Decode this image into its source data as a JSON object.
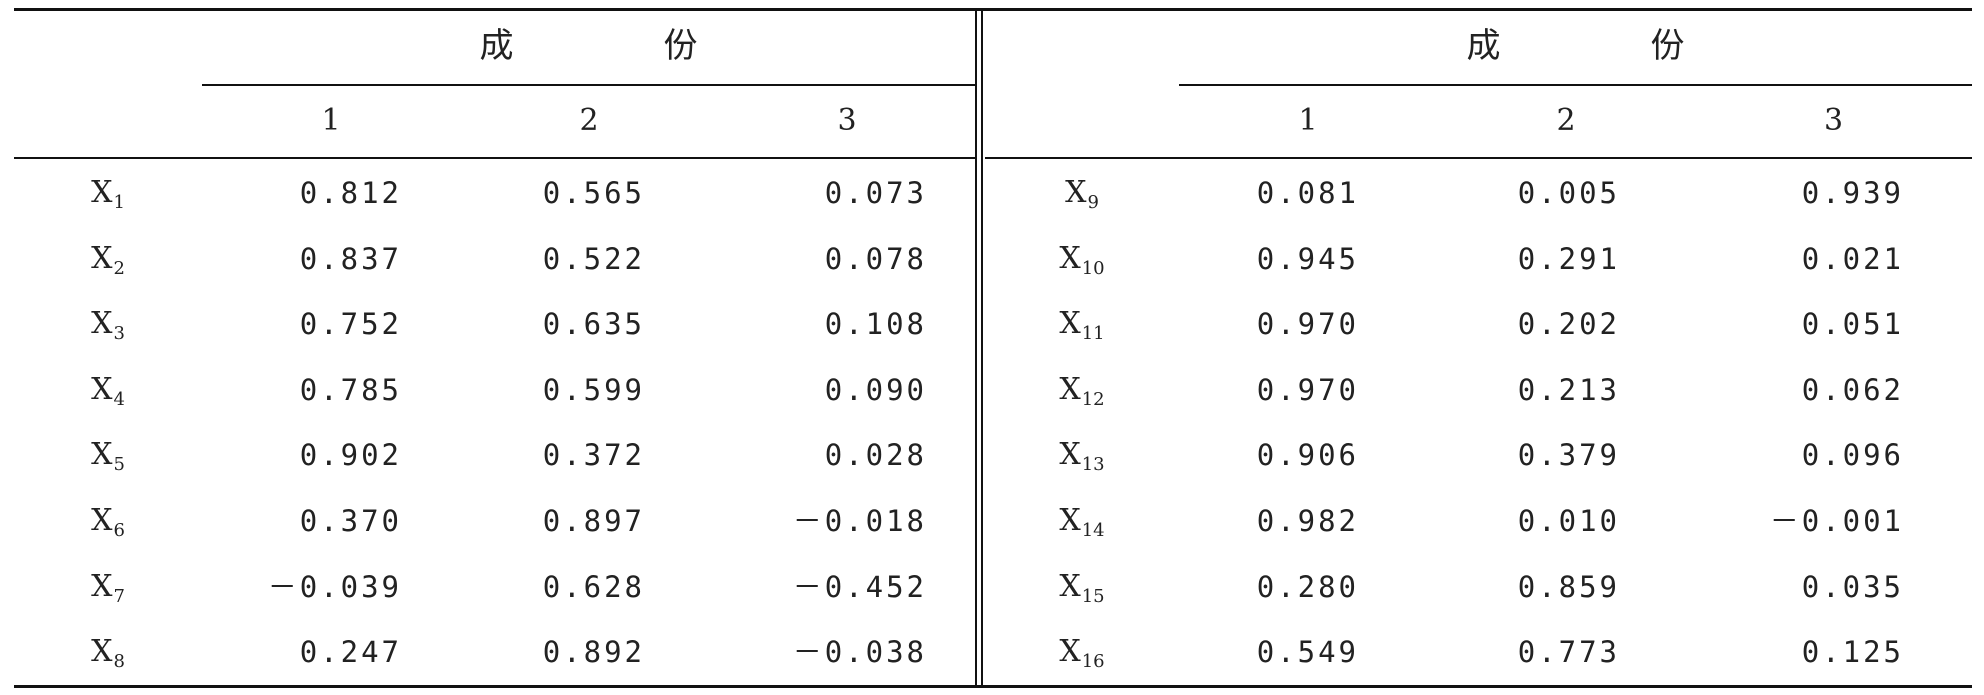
{
  "table": {
    "left": {
      "group_header": "成份",
      "columns": [
        "1",
        "2",
        "3"
      ],
      "rows": [
        {
          "var": "X",
          "sub": "1",
          "values": [
            "0.812",
            "0.565",
            "0.073"
          ]
        },
        {
          "var": "X",
          "sub": "2",
          "values": [
            "0.837",
            "0.522",
            "0.078"
          ]
        },
        {
          "var": "X",
          "sub": "3",
          "values": [
            "0.752",
            "0.635",
            "0.108"
          ]
        },
        {
          "var": "X",
          "sub": "4",
          "values": [
            "0.785",
            "0.599",
            "0.090"
          ]
        },
        {
          "var": "X",
          "sub": "5",
          "values": [
            "0.902",
            "0.372",
            "0.028"
          ]
        },
        {
          "var": "X",
          "sub": "6",
          "values": [
            "0.370",
            "0.897",
            "－0.018"
          ]
        },
        {
          "var": "X",
          "sub": "7",
          "values": [
            "－0.039",
            "0.628",
            "－0.452"
          ]
        },
        {
          "var": "X",
          "sub": "8",
          "values": [
            "0.247",
            "0.892",
            "－0.038"
          ]
        }
      ]
    },
    "right": {
      "group_header": "成份",
      "columns": [
        "1",
        "2",
        "3"
      ],
      "rows": [
        {
          "var": "X",
          "sub": "9",
          "values": [
            "0.081",
            "0.005",
            "0.939"
          ]
        },
        {
          "var": "X",
          "sub": "10",
          "values": [
            "0.945",
            "0.291",
            "0.021"
          ]
        },
        {
          "var": "X",
          "sub": "11",
          "values": [
            "0.970",
            "0.202",
            "0.051"
          ]
        },
        {
          "var": "X",
          "sub": "12",
          "values": [
            "0.970",
            "0.213",
            "0.062"
          ]
        },
        {
          "var": "X",
          "sub": "13",
          "values": [
            "0.906",
            "0.379",
            "0.096"
          ]
        },
        {
          "var": "X",
          "sub": "14",
          "values": [
            "0.982",
            "0.010",
            "－0.001"
          ]
        },
        {
          "var": "X",
          "sub": "15",
          "values": [
            "0.280",
            "0.859",
            "0.035"
          ]
        },
        {
          "var": "X",
          "sub": "16",
          "values": [
            "0.549",
            "0.773",
            "0.125"
          ]
        }
      ]
    }
  }
}
